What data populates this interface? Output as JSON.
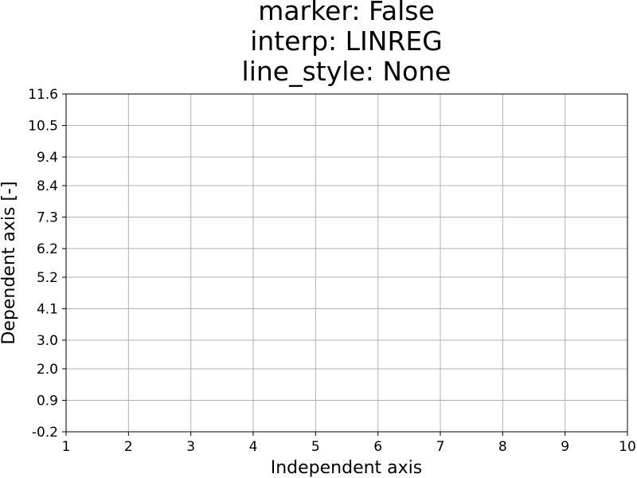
{
  "chart_data": {
    "type": "line",
    "title_lines": [
      "marker: False",
      "interp: LINREG",
      "line_style: None"
    ],
    "xlabel": "Independent axis",
    "ylabel": "Dependent axis [-]",
    "xlim": [
      1,
      10
    ],
    "ylim": [
      -0.2,
      11.6
    ],
    "x_ticks": [
      1,
      2,
      3,
      4,
      5,
      6,
      7,
      8,
      9,
      10
    ],
    "y_ticks": [
      -0.2,
      0.9,
      2.0,
      3.0,
      4.1,
      5.2,
      6.2,
      7.3,
      8.4,
      9.4,
      10.5,
      11.6
    ],
    "x_tick_labels": [
      "1",
      "2",
      "3",
      "4",
      "5",
      "6",
      "7",
      "8",
      "9",
      "10"
    ],
    "y_tick_labels": [
      "-0.2",
      "0.9",
      "2.0",
      "3.0",
      "4.1",
      "5.2",
      "6.2",
      "7.3",
      "8.4",
      "9.4",
      "10.5",
      "11.6"
    ],
    "grid": true,
    "grid_color": "#b0b0b0",
    "series": []
  }
}
